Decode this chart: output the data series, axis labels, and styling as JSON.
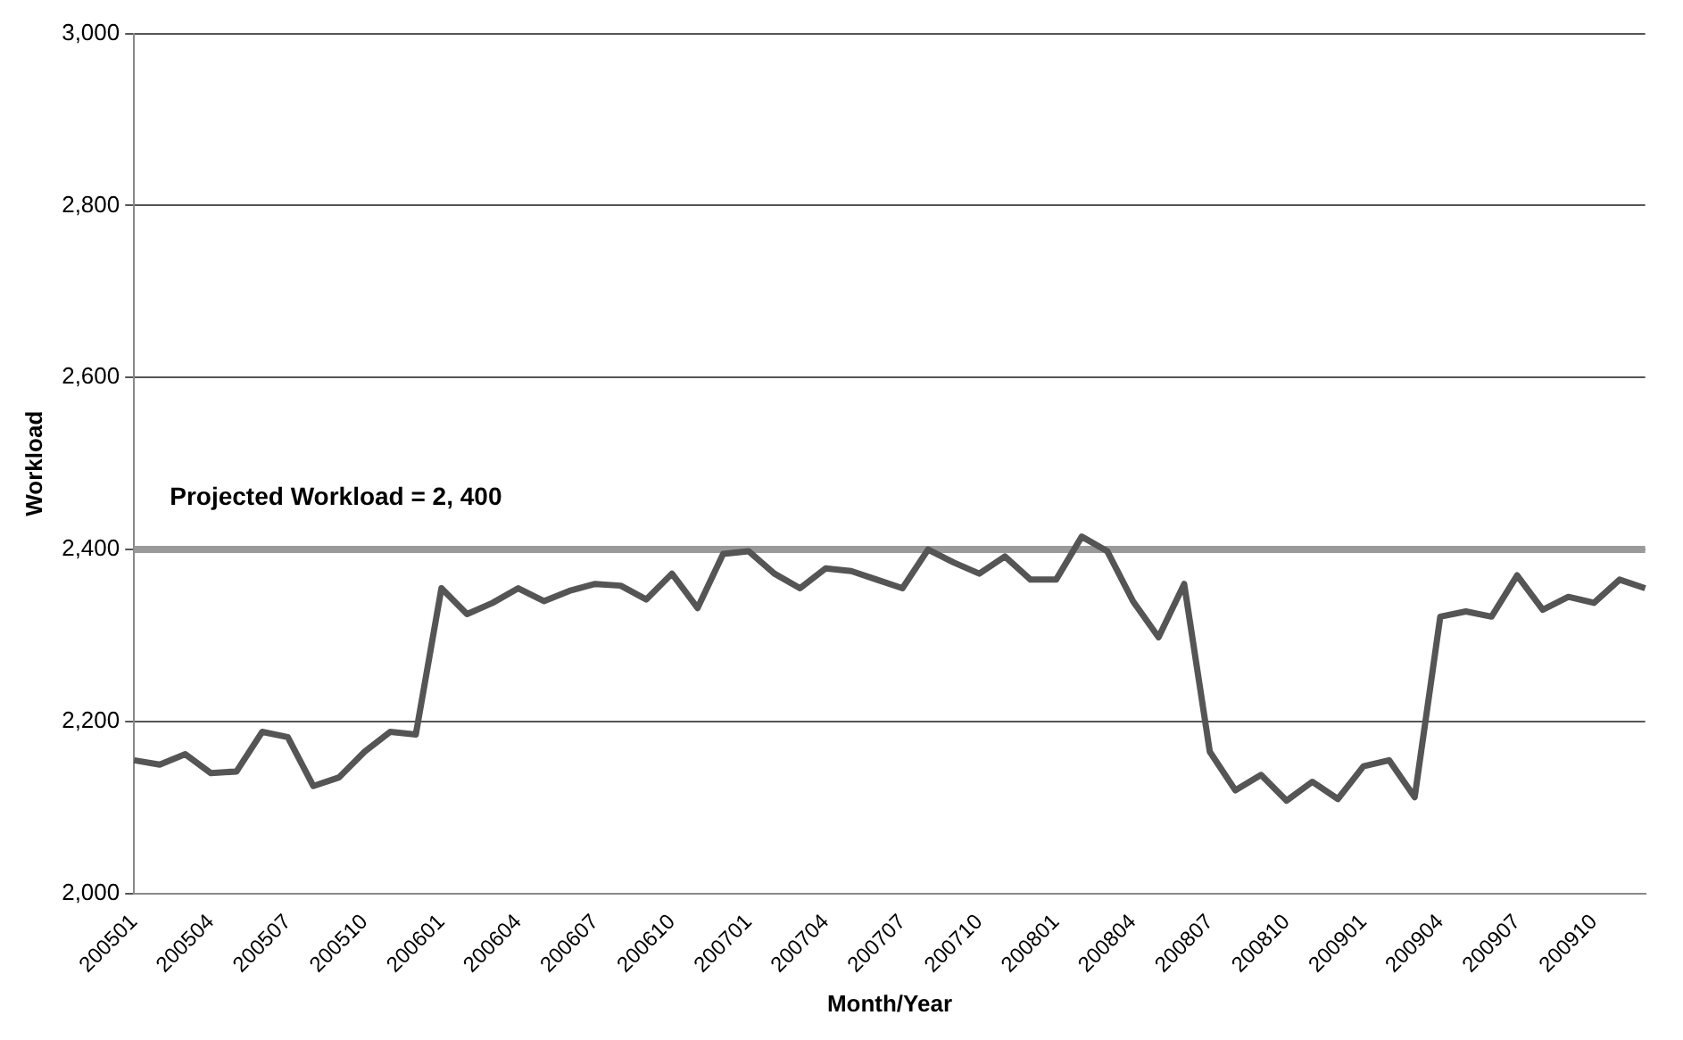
{
  "chart_data": {
    "type": "line",
    "xlabel": "Month/Year",
    "ylabel": "Workload",
    "categories": [
      "200501",
      null,
      null,
      "200504",
      null,
      null,
      "200507",
      null,
      null,
      "200510",
      null,
      null,
      "200601",
      null,
      null,
      "200604",
      null,
      null,
      "200607",
      null,
      null,
      "200610",
      null,
      null,
      "200701",
      null,
      null,
      "200704",
      null,
      null,
      "200707",
      null,
      null,
      "200710",
      null,
      null,
      "200801",
      null,
      null,
      "200804",
      null,
      null,
      "200807",
      null,
      null,
      "200810",
      null,
      null,
      "200901",
      null,
      null,
      "200904",
      null,
      null,
      "200907",
      null,
      null,
      "200910",
      null,
      null
    ],
    "series": [
      {
        "color": "#555555",
        "values": [
          2155,
          2150,
          2162,
          2140,
          2142,
          2188,
          2182,
          2125,
          2135,
          2165,
          2188,
          2185,
          2355,
          2325,
          2338,
          2355,
          2340,
          2352,
          2360,
          2358,
          2342,
          2372,
          2332,
          2395,
          2398,
          2372,
          2355,
          2378,
          2375,
          2365,
          2355,
          2400,
          2385,
          2372,
          2392,
          2365,
          2365,
          2415,
          2398,
          2340,
          2298,
          2360,
          2165,
          2120,
          2138,
          2108,
          2130,
          2110,
          2148,
          2155,
          2112,
          2322,
          2328,
          2322,
          2370,
          2330,
          2345,
          2338,
          2365,
          2355
        ]
      }
    ],
    "ylim": [
      2000,
      3000
    ],
    "yticks": [
      {
        "value": 2000,
        "label": "2,000"
      },
      {
        "value": 2200,
        "label": "2,200"
      },
      {
        "value": 2400,
        "label": "2,400"
      },
      {
        "value": 2600,
        "label": "2,600"
      },
      {
        "value": 2800,
        "label": "2,800"
      },
      {
        "value": 3000,
        "label": "3,000"
      }
    ],
    "grid": "y",
    "legend": false,
    "marker": "none",
    "line_style": "solid",
    "annotations": [
      "Projected Workload = 2, 400"
    ],
    "ref_lines": [
      {
        "axis": "y",
        "value": 2400,
        "color": "#9a9a9a"
      }
    ]
  }
}
